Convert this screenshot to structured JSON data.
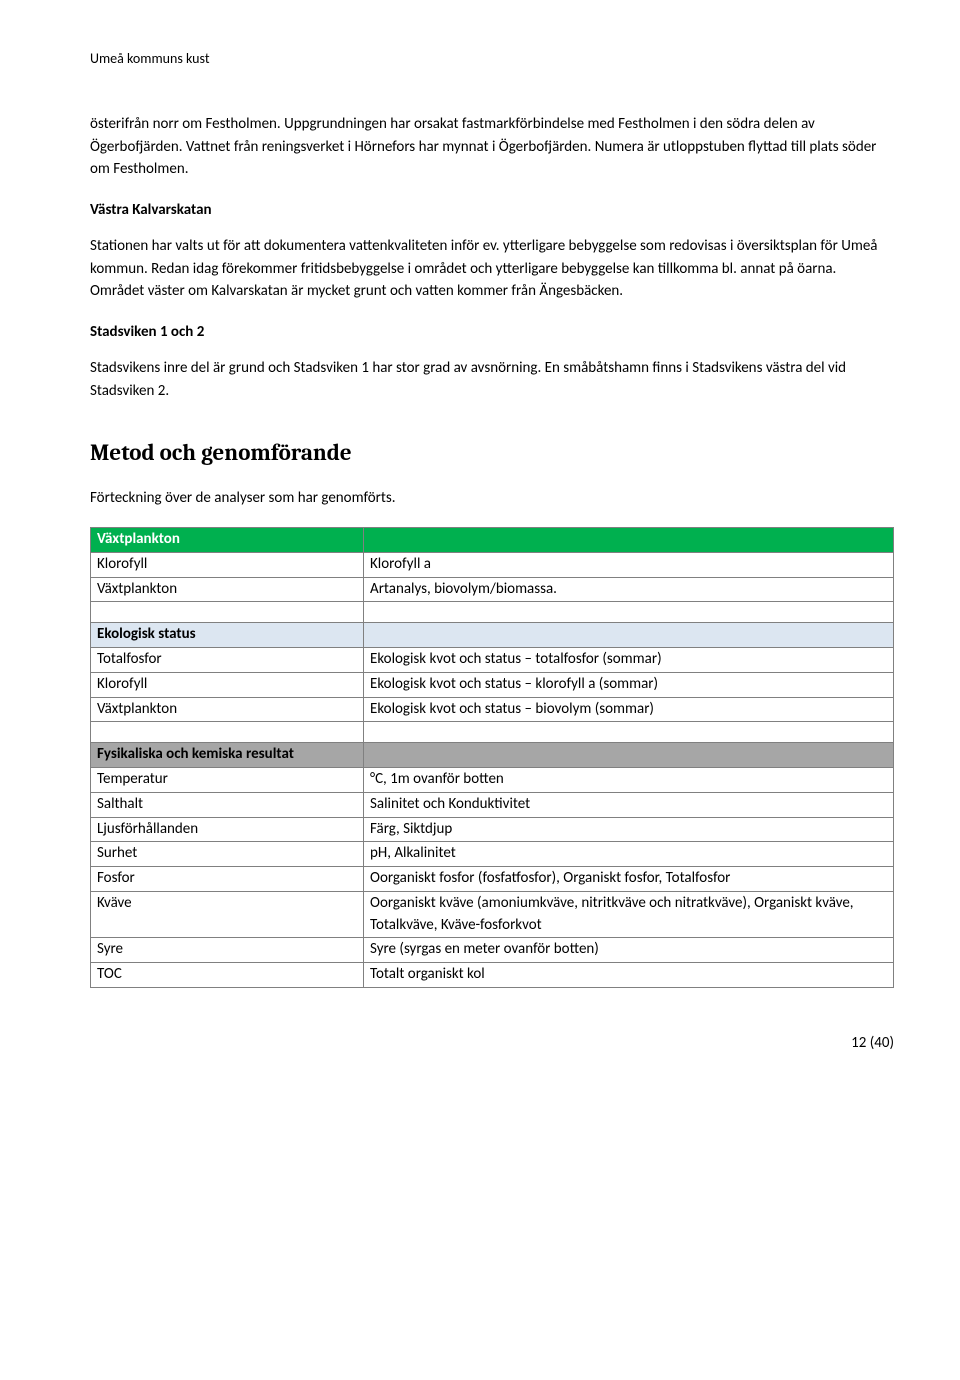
{
  "header": "Umeå kommuns kust",
  "para1": "österifrån norr om Festholmen. Uppgrundningen har orsakat fastmarkförbindelse med Festholmen i den södra delen av Ögerbofjärden. Vattnet från reningsverket i Hörnefors har mynnat i Ögerbofjärden. Numera är utloppstuben flyttad till plats söder om Festholmen.",
  "sec1_title": "Västra Kalvarskatan",
  "sec1_body": "Stationen har valts ut för att dokumentera vattenkvaliteten inför ev. ytterligare bebyggelse som redovisas i översiktsplan för Umeå kommun. Redan idag förekommer fritidsbebyggelse i området och ytterligare bebyggelse kan tillkomma bl. annat på öarna. Området väster om Kalvarskatan är mycket grunt och vatten kommer från Ängesbäcken.",
  "sec2_title": "Stadsviken 1 och 2",
  "sec2_body": "Stadsvikens inre del är grund och Stadsviken 1 har stor grad av avsnörning. En småbåtshamn finns i Stadsvikens västra del vid Stadsviken 2.",
  "h2": "Metod och genomförande",
  "table_intro": "Förteckning över de analyser som har genomförts.",
  "table": {
    "group1_header": "Växtplankton",
    "group1_rows": [
      [
        "Klorofyll",
        "Klorofyll a"
      ],
      [
        "Växtplankton",
        "Artanalys, biovolym/biomassa."
      ]
    ],
    "group2_header": "Ekologisk status",
    "group2_rows": [
      [
        "Totalfosfor",
        "Ekologisk kvot och status – totalfosfor (sommar)"
      ],
      [
        "Klorofyll",
        "Ekologisk kvot och status – klorofyll a (sommar)"
      ],
      [
        "Växtplankton",
        "Ekologisk kvot och status – biovolym (sommar)"
      ]
    ],
    "group3_header": "Fysikaliska och kemiska resultat",
    "group3_rows": [
      [
        "Temperatur",
        "°C, 1m ovanför botten"
      ],
      [
        "Salthalt",
        "Salinitet och Konduktivitet"
      ],
      [
        "Ljusförhållanden",
        "Färg, Siktdjup"
      ],
      [
        "Surhet",
        "pH, Alkalinitet"
      ],
      [
        "Fosfor",
        "Oorganiskt fosfor (fosfatfosfor), Organiskt fosfor, Totalfosfor"
      ],
      [
        "Kväve",
        "Oorganiskt kväve (amoniumkväve, nitritkväve och nitratkväve), Organiskt kväve, Totalkväve, Kväve-fosforkvot"
      ],
      [
        "Syre",
        "Syre (syrgas en meter ovanför botten)"
      ],
      [
        "TOC",
        "Totalt organiskt kol"
      ]
    ]
  },
  "footer": "12 (40)"
}
